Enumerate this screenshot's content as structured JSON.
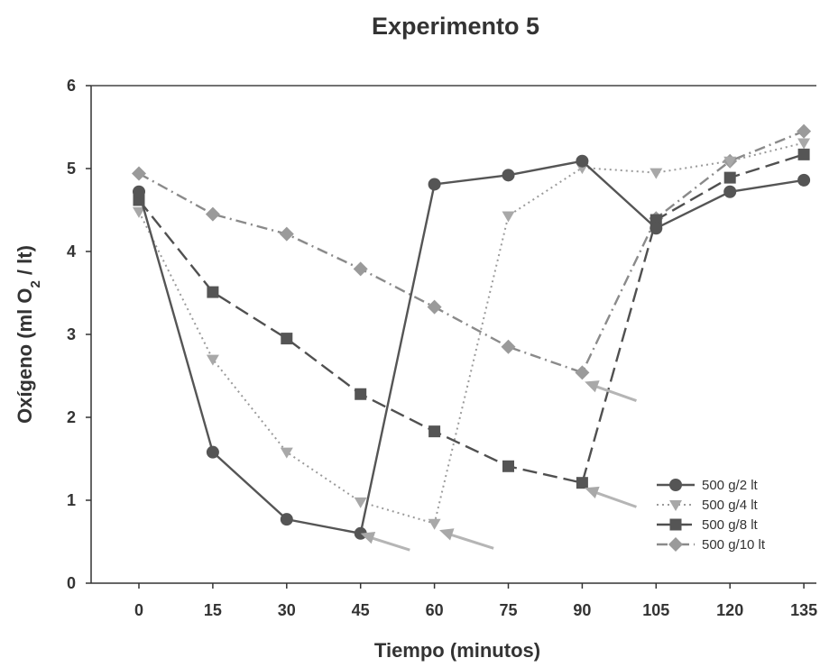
{
  "chart_data": {
    "type": "line",
    "title": "Experimento  5",
    "xlabel": "Tiempo (minutos)",
    "ylabel": "Oxígeno (ml O2 / lt)",
    "ylabel_parts": {
      "pre": "Oxígeno (ml O",
      "sub": "2",
      "post": " / lt)"
    },
    "x": [
      0,
      15,
      30,
      45,
      60,
      75,
      90,
      105,
      120,
      135
    ],
    "x_tick_labels": [
      "0",
      "15",
      "30",
      "45",
      "60",
      "75",
      "90",
      "105",
      "120",
      "135"
    ],
    "y_tick_labels": [
      "0",
      "1",
      "2",
      "3",
      "4",
      "5",
      "6"
    ],
    "ylim": [
      0,
      6
    ],
    "grid": false,
    "legend_position": "bottom-right",
    "series": [
      {
        "name": "500 g/2 lt",
        "marker": "circle",
        "dash": "solid",
        "color": "#555555",
        "points": [
          [
            0,
            4.72
          ],
          [
            15,
            1.58
          ],
          [
            30,
            0.77
          ],
          [
            45,
            0.6
          ],
          [
            60,
            4.81
          ],
          [
            75,
            4.92
          ],
          [
            90,
            5.09
          ],
          [
            105,
            4.28
          ],
          [
            120,
            4.72
          ],
          [
            135,
            4.86
          ]
        ]
      },
      {
        "name": "500 g/4 lt",
        "marker": "triangle-down",
        "dash": "dotted",
        "color": "#9a9a9a",
        "points": [
          [
            0,
            4.48
          ],
          [
            15,
            2.7
          ],
          [
            30,
            1.58
          ],
          [
            45,
            0.98
          ],
          [
            60,
            0.72
          ],
          [
            75,
            4.43
          ],
          [
            90,
            5.01
          ],
          [
            105,
            4.95
          ],
          [
            120,
            5.09
          ],
          [
            135,
            5.31
          ]
        ]
      },
      {
        "name": "500 g/8 lt",
        "marker": "square",
        "dash": "dashed",
        "color": "#505050",
        "points": [
          [
            0,
            4.62
          ],
          [
            15,
            3.51
          ],
          [
            30,
            2.95
          ],
          [
            45,
            2.28
          ],
          [
            60,
            1.83
          ],
          [
            75,
            1.41
          ],
          [
            90,
            1.21
          ],
          [
            105,
            4.38
          ],
          [
            120,
            4.89
          ],
          [
            135,
            5.17
          ]
        ]
      },
      {
        "name": "500 g/10 lt",
        "marker": "diamond",
        "dash": "dashdot",
        "color": "#8a8a8a",
        "points": [
          [
            0,
            4.94
          ],
          [
            15,
            4.45
          ],
          [
            30,
            4.21
          ],
          [
            45,
            3.79
          ],
          [
            60,
            3.33
          ],
          [
            75,
            2.85
          ],
          [
            90,
            2.54
          ],
          [
            105,
            4.4
          ],
          [
            120,
            5.09
          ],
          [
            135,
            5.45
          ]
        ]
      }
    ],
    "arrows": [
      {
        "tip": [
          45,
          0.6
        ],
        "tail": [
          55,
          0.4
        ]
      },
      {
        "tip": [
          61,
          0.64
        ],
        "tail": [
          72,
          0.42
        ]
      },
      {
        "tip": [
          90.5,
          1.15
        ],
        "tail": [
          101,
          0.92
        ]
      },
      {
        "tip": [
          90.5,
          2.43
        ],
        "tail": [
          101,
          2.2
        ]
      }
    ]
  }
}
